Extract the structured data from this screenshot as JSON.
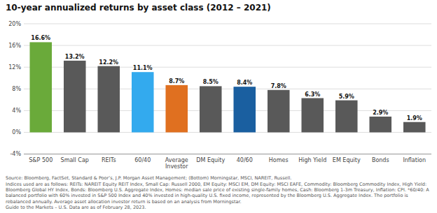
{
  "chart_data": {
    "type": "bar",
    "title": "10-year annualized returns by asset class (2012 – 2021)",
    "categories": [
      "S&P 500",
      "Small Cap",
      "REITs",
      "60/40",
      "Average\nInvestor",
      "DM Equity",
      "40/60",
      "Homes",
      "High Yield",
      "EM Equity",
      "Bonds",
      "Inflation"
    ],
    "values": [
      16.6,
      13.2,
      12.2,
      11.1,
      8.7,
      8.5,
      8.4,
      7.8,
      6.3,
      5.9,
      2.9,
      1.9
    ],
    "value_labels": [
      "16.6%",
      "13.2%",
      "12.2%",
      "11.1%",
      "8.7%",
      "8.5%",
      "8.4%",
      "7.8%",
      "6.3%",
      "5.9%",
      "2.9%",
      "1.9%"
    ],
    "colors": [
      "#6aaa3a",
      "#595959",
      "#595959",
      "#33aaee",
      "#e07020",
      "#595959",
      "#1a5fa0",
      "#595959",
      "#595959",
      "#595959",
      "#595959",
      "#595959"
    ],
    "ylim": [
      -4,
      20
    ],
    "yticks": [
      {
        "value": -4,
        "label": "-4%"
      },
      {
        "value": 0,
        "label": "0%"
      },
      {
        "value": 4,
        "label": "4%"
      },
      {
        "value": 8,
        "label": "8%"
      },
      {
        "value": 12,
        "label": "12%"
      },
      {
        "value": 16,
        "label": "16%"
      },
      {
        "value": 20,
        "label": "20%"
      }
    ],
    "grid": true,
    "data_labels": true,
    "footnote": "Source: Bloomberg, FactSet, Standard & Poor’s, J.P. Morgan Asset Management; (Bottom) Morningstar, MSCI, NAREIT, Russell.\nIndices used are as follows: REITs: NAREIT Equity REIT Index, Small Cap: Russell 2000, EM Equity: MSCI EM, DM Equity: MSCI EAFE, Commodity: Bloomberg Commodity Index, High Yield: Bloomberg Global HY Index, Bonds: Bloomberg U.S. Aggregate Index, Homes: median sale price of existing single-family homes, Cash: Bloomberg 1-3m Treasury, Inflation: CPI. *60/40: A balanced portfolio with 60% invested in S&P 500 Index and 40% invested in high-quality U.S. fixed income, represented by the Bloomberg U.S. Aggregate Index. The portfolio is rebalanced annually. Average asset allocation investor return is based on an analysis from Morningstar.\nGuide to the Markets – U.S. Data are as of February 28, 2023."
  }
}
